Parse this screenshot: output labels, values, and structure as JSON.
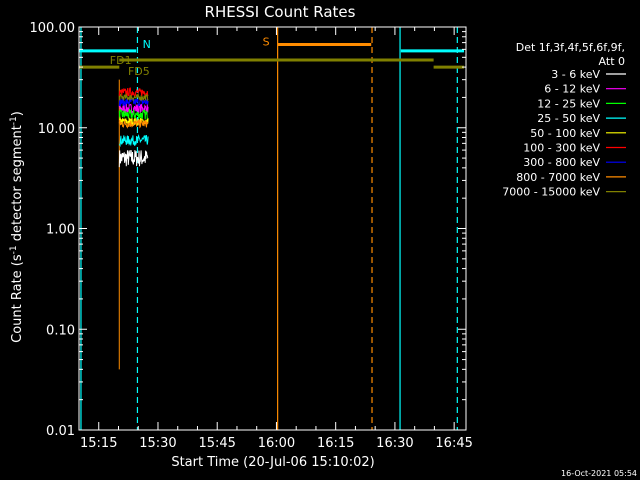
{
  "chart_data": {
    "type": "line",
    "title": "RHESSI Count Rates",
    "xlabel": "Start Time (20-Jul-06 15:10:02)",
    "ylabel_main": "Count Rate (s",
    "ylabel_sup": "-1",
    "ylabel_rest": " detector segment",
    "ylabel_sup2": "-1",
    "ylabel_close": ")",
    "y_scale": "log",
    "ylim": [
      0.01,
      100
    ],
    "xlim_minutes": [
      0,
      98
    ],
    "x_ticks": [
      {
        "label": "15:15",
        "minutes": 5
      },
      {
        "label": "15:30",
        "minutes": 20
      },
      {
        "label": "15:45",
        "minutes": 35
      },
      {
        "label": "16:00",
        "minutes": 50
      },
      {
        "label": "16:15",
        "minutes": 65
      },
      {
        "label": "16:30",
        "minutes": 80
      },
      {
        "label": "16:45",
        "minutes": 95
      }
    ],
    "y_ticks": [
      {
        "label": "100.00",
        "value": 100
      },
      {
        "label": "10.00",
        "value": 10
      },
      {
        "label": "1.00",
        "value": 1
      },
      {
        "label": "0.10",
        "value": 0.1
      },
      {
        "label": "0.01",
        "value": 0.01
      }
    ],
    "legend_placement": "right",
    "legend_header": [
      "Det 1f,3f,4f,5f,6f,9f,",
      "Att 0"
    ],
    "series": [
      {
        "name": "3 - 6 keV",
        "color": "#ffffff",
        "level": 5.0,
        "spread": 0.09
      },
      {
        "name": "6 - 12 keV",
        "color": "#ff00ff",
        "level": 15.5,
        "spread": 0.05
      },
      {
        "name": "12 - 25 keV",
        "color": "#00ff00",
        "level": 13.5,
        "spread": 0.05
      },
      {
        "name": "25 - 50 keV",
        "color": "#00ffff",
        "level": 7.5,
        "spread": 0.05
      },
      {
        "name": "50 - 100 keV",
        "color": "#ffff00",
        "level": 11.5,
        "spread": 0.04
      },
      {
        "name": "100 - 300 keV",
        "color": "#ff0000",
        "level": 22.5,
        "spread": 0.04
      },
      {
        "name": "300 - 800 keV",
        "color": "#0000ff",
        "level": 18.0,
        "spread": 0.04
      },
      {
        "name": "800 - 7000 keV",
        "color": "#ff8c00",
        "level": 11.0,
        "spread": 0.04
      },
      {
        "name": "7000 - 15000 keV",
        "color": "#808000",
        "level": 20.0,
        "spread": 0.03
      }
    ],
    "data_span_minutes": [
      10.2,
      17.5
    ],
    "annotations": {
      "N": {
        "label": "N",
        "color": "#00ffff",
        "value": 58,
        "segments": [
          [
            0,
            14.5
          ],
          [
            81.5,
            97.5
          ]
        ]
      },
      "S": {
        "label": "S",
        "color": "#ff8c00",
        "value": 67,
        "segments": [
          [
            50.3,
            74
          ]
        ]
      },
      "FD1": {
        "label": "FD1",
        "color": "#808000",
        "value": 47,
        "segments": [
          [
            10.2,
            89.8
          ]
        ]
      },
      "FD5": {
        "label": "FD5",
        "color": "#808000",
        "value": 40,
        "segments": [
          [
            0,
            10.2
          ],
          [
            89.8,
            97.5
          ]
        ]
      },
      "orange_line_level": 0.04
    },
    "vertical_markers": [
      {
        "minutes": 0.5,
        "color": "#00ffff",
        "style": "solid"
      },
      {
        "minutes": 14.8,
        "color": "#00ffff",
        "style": "dashed"
      },
      {
        "minutes": 50.3,
        "color": "#ff8c00",
        "style": "solid"
      },
      {
        "minutes": 74.2,
        "color": "#ff8c00",
        "style": "dashed"
      },
      {
        "minutes": 81.3,
        "color": "#00ffff",
        "style": "solid"
      },
      {
        "minutes": 95.8,
        "color": "#00ffff",
        "style": "dashed"
      }
    ]
  },
  "footer": {
    "timestamp": "16-Oct-2021 05:54"
  }
}
